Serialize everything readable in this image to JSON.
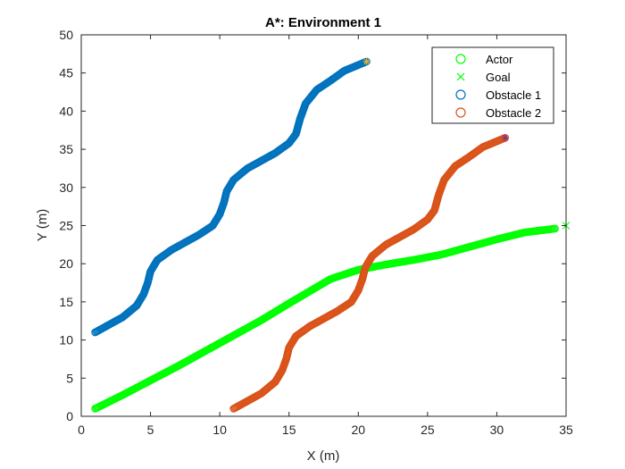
{
  "chart_data": {
    "type": "scatter",
    "title": "A*: Environment 1",
    "xlabel": "X (m)",
    "ylabel": "Y (m)",
    "xlim": [
      0,
      35
    ],
    "ylim": [
      0,
      50
    ],
    "xticks": [
      0,
      5,
      10,
      15,
      20,
      25,
      30,
      35
    ],
    "yticks": [
      0,
      5,
      10,
      15,
      20,
      25,
      30,
      35,
      40,
      45,
      50
    ],
    "grid": false,
    "legend_position": "top-right",
    "legend": [
      {
        "label": "Actor",
        "marker": "circle",
        "color": "#00ff00"
      },
      {
        "label": "Goal",
        "marker": "x",
        "color": "#00ff00"
      },
      {
        "label": "Obstacle 1",
        "marker": "circle",
        "color": "#0072bd"
      },
      {
        "label": "Obstacle 2",
        "marker": "circle",
        "color": "#d95319"
      }
    ],
    "series": [
      {
        "name": "Actor",
        "marker": "circle",
        "color": "#00ff00",
        "x": [
          1,
          3,
          5,
          7,
          9,
          11,
          13,
          15,
          16.5,
          18,
          20,
          22,
          24,
          26,
          28,
          30,
          32,
          34.2
        ],
        "y": [
          1,
          2.8,
          4.7,
          6.6,
          8.6,
          10.6,
          12.6,
          14.8,
          16.4,
          18,
          19.2,
          19.9,
          20.5,
          21.2,
          22.2,
          23.2,
          24.1,
          24.6
        ]
      },
      {
        "name": "Goal",
        "marker": "x",
        "color": "#00ff00",
        "x": [
          35
        ],
        "y": [
          25
        ]
      },
      {
        "name": "Obstacle 1",
        "marker": "circle",
        "color": "#0072bd",
        "x": [
          1,
          2,
          3,
          4,
          4.5,
          4.8,
          5,
          5.5,
          6.5,
          7.5,
          8.5,
          9.5,
          10,
          10.3,
          10.5,
          11,
          12,
          13,
          14,
          15,
          15.5,
          15.8,
          16.2,
          17,
          18,
          19,
          20.6
        ],
        "y": [
          11,
          12,
          13,
          14.5,
          16,
          17.5,
          19,
          20.5,
          21.8,
          22.8,
          23.8,
          25,
          26.5,
          28,
          29.5,
          31,
          32.5,
          33.5,
          34.5,
          35.8,
          37,
          39,
          41,
          42.8,
          44,
          45.3,
          46.5
        ]
      },
      {
        "name": "Obstacle 2",
        "marker": "circle",
        "color": "#d95319",
        "x": [
          11,
          12,
          13,
          14,
          14.5,
          14.8,
          15,
          15.5,
          16.5,
          17.5,
          18.5,
          19.5,
          20,
          20.3,
          20.5,
          21,
          22,
          23,
          24,
          25,
          25.5,
          25.8,
          26.2,
          27,
          28,
          29,
          30.6
        ],
        "y": [
          1,
          2,
          3,
          4.5,
          6,
          7.5,
          9,
          10.5,
          11.8,
          12.8,
          13.8,
          15,
          16.5,
          18,
          19.5,
          21,
          22.5,
          23.5,
          24.5,
          25.8,
          27,
          29,
          31,
          32.8,
          34,
          35.3,
          36.5
        ]
      }
    ]
  }
}
